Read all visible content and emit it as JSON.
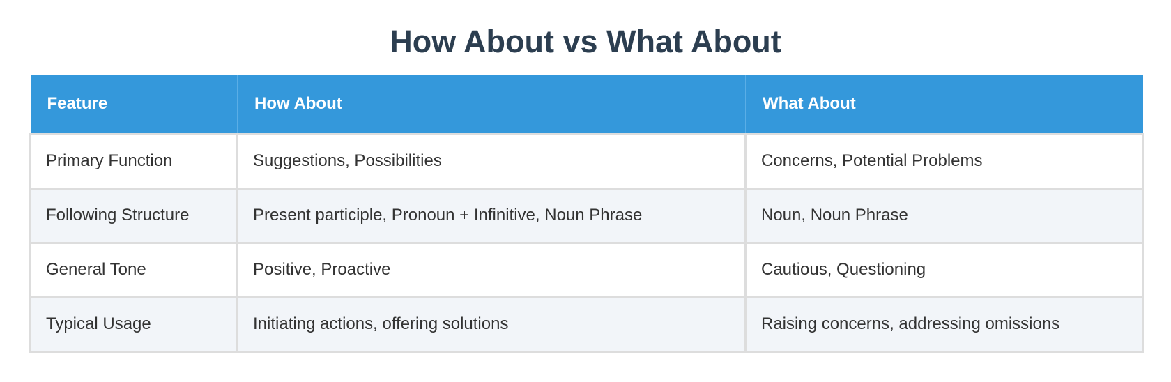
{
  "title": "How About vs What About",
  "table": {
    "headers": [
      "Feature",
      "How About",
      "What About"
    ],
    "rows": [
      [
        "Primary Function",
        "Suggestions, Possibilities",
        "Concerns, Potential Problems"
      ],
      [
        "Following Structure",
        "Present participle, Pronoun + Infinitive, Noun Phrase",
        "Noun, Noun Phrase"
      ],
      [
        "General Tone",
        "Positive, Proactive",
        "Cautious, Questioning"
      ],
      [
        "Typical Usage",
        "Initiating actions, offering solutions",
        "Raising concerns, addressing omissions"
      ]
    ]
  }
}
